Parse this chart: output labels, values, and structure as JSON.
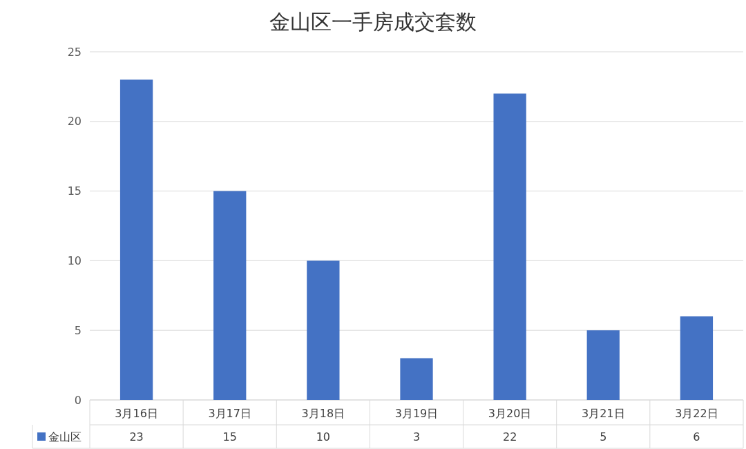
{
  "chart_data": {
    "type": "bar",
    "title": "金山区一手房成交套数",
    "categories": [
      "3月16日",
      "3月17日",
      "3月18日",
      "3月19日",
      "3月20日",
      "3月21日",
      "3月22日"
    ],
    "series": [
      {
        "name": "金山区",
        "color": "#4472c4",
        "values": [
          23,
          15,
          10,
          3,
          22,
          5,
          6
        ]
      }
    ],
    "ylim": [
      0,
      25
    ],
    "yticks": [
      0,
      5,
      10,
      15,
      20,
      25
    ],
    "grid": "y",
    "legend": "bottom",
    "data_labels": true
  }
}
